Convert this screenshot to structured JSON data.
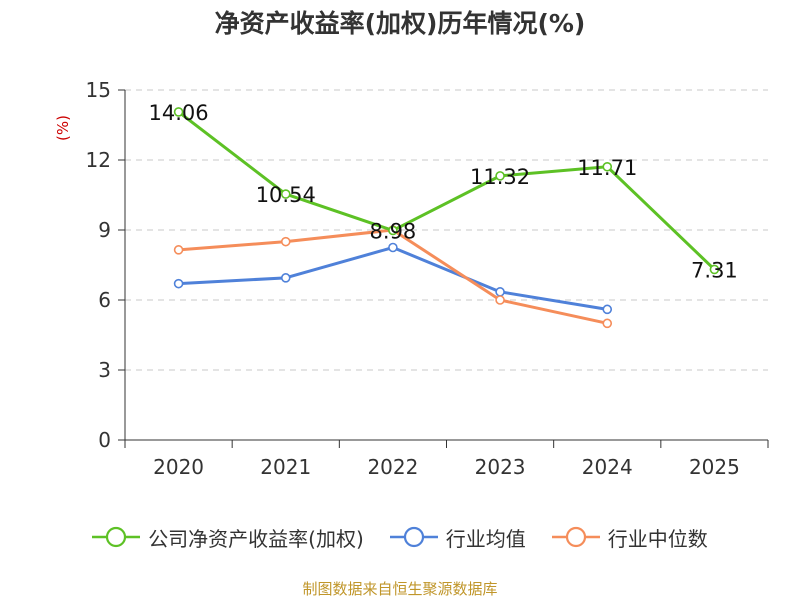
{
  "chart_data": {
    "type": "line",
    "title": "净资产收益率(加权)历年情况(%)",
    "ylabel": "(%)",
    "xlabel": "",
    "categories": [
      "2020",
      "2021",
      "2022",
      "2023",
      "2024",
      "2025"
    ],
    "ylim": [
      0,
      15
    ],
    "yticks": [
      0,
      3,
      6,
      9,
      12,
      15
    ],
    "grid": true,
    "legend_position": "bottom",
    "series": [
      {
        "name": "公司净资产收益率(加权)",
        "color": "#5dc125",
        "values": [
          14.06,
          10.54,
          8.98,
          11.32,
          11.71,
          7.31
        ],
        "labels": [
          "14.06",
          "10.54",
          "8.98",
          "11.32",
          "11.71",
          "7.31"
        ]
      },
      {
        "name": "行业均值",
        "color": "#4f81d9",
        "values": [
          6.7,
          6.95,
          8.25,
          6.35,
          5.6,
          null
        ]
      },
      {
        "name": "行业中位数",
        "color": "#f58d5a",
        "values": [
          8.15,
          8.5,
          9.0,
          6.0,
          5.0,
          null
        ]
      }
    ],
    "source": "制图数据来自恒生聚源数据库"
  }
}
